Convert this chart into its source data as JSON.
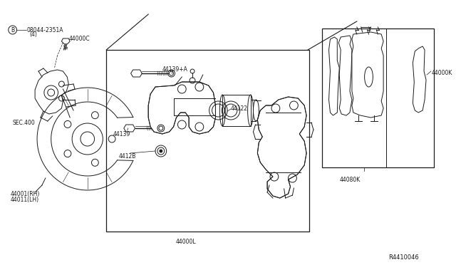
{
  "bg_color": "#ffffff",
  "line_color": "#1a1a1a",
  "text_color": "#1a1a1a",
  "diagram_ref": "R4410046",
  "figsize": [
    6.4,
    3.72
  ],
  "dpi": 100,
  "labels": {
    "B_text": "B",
    "ref_text": "08044-2351A",
    "qty_text": "(4)",
    "44000C": "44000C",
    "SEC400": "SEC.400",
    "44001": "44001(RH)",
    "44011": "44011(LH)",
    "44139A": "44139+A",
    "44139": "44139",
    "44128": "4412B",
    "44122": "44122",
    "44000L": "44000L",
    "44000K": "44000K",
    "44080K": "44080K"
  }
}
